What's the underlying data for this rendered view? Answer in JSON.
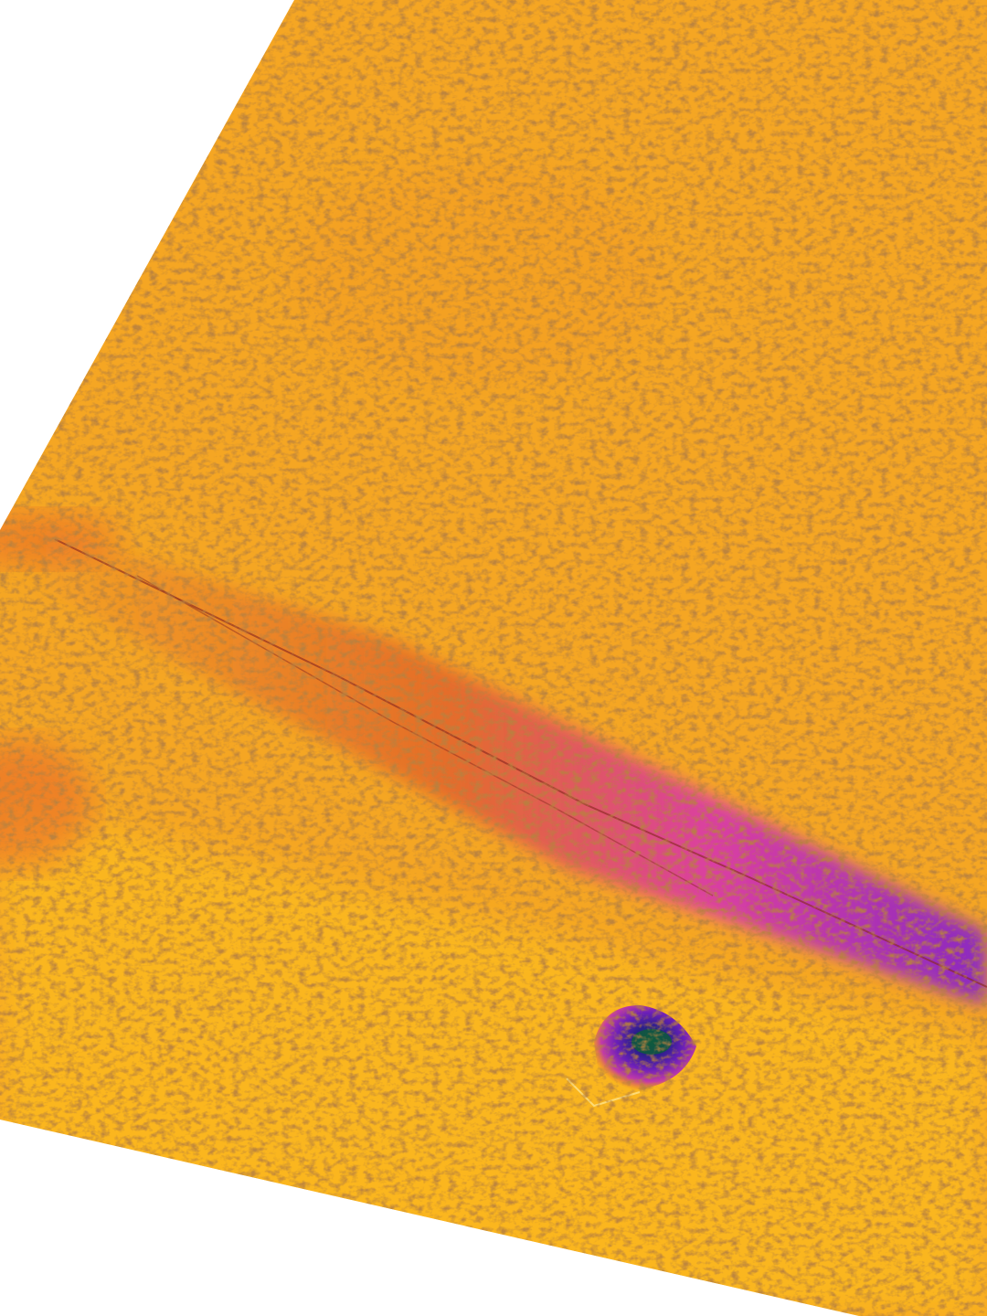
{
  "image": {
    "subject": "thermal-ground",
    "palette": {
      "background": "#ffffff",
      "base_orange": "#f5a623",
      "warm_yellow": "#ffc41a",
      "seam_red": "#e0602a",
      "hot_magenta": "#d93aa8",
      "cold_purple": "#6a1fb8",
      "core_green": "#0e5a3c",
      "texture_dark": "#7a3a10"
    }
  }
}
